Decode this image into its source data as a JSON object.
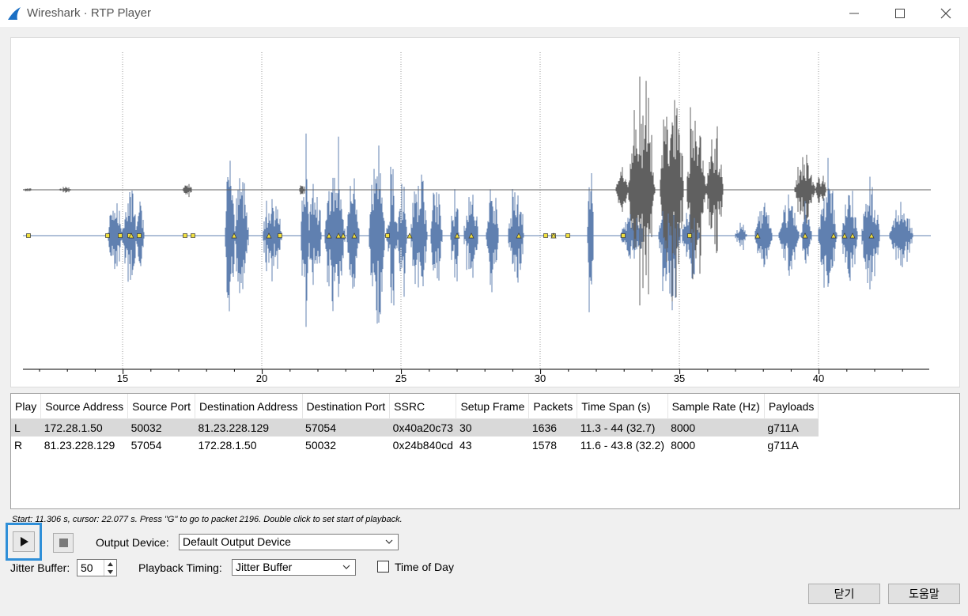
{
  "window": {
    "title": "Wireshark · RTP Player",
    "icon": "wireshark-fin-icon",
    "controls": [
      "minimize-icon",
      "maximize-icon",
      "close-icon"
    ]
  },
  "colors": {
    "left_channel": "#6080b0",
    "right_channel": "#606060",
    "marker_fill": "#f0e040",
    "selection_row": "#d9d9d9",
    "focus_outline": "#2f8fd8"
  },
  "waveform": {
    "x_ticks": [
      "15",
      "20",
      "25",
      "30",
      "35",
      "40"
    ]
  },
  "table": {
    "columns": [
      "Play",
      "Source Address",
      "Source Port",
      "Destination Address",
      "Destination Port",
      "SSRC",
      "Setup Frame",
      "Packets",
      "Time Span (s)",
      "Sample Rate (Hz)",
      "Payloads"
    ],
    "rows": [
      [
        "L",
        "172.28.1.50",
        "50032",
        "81.23.228.129",
        "57054",
        "0x40a20c73",
        "30",
        "1636",
        "11.3 - 44 (32.7)",
        "8000",
        "g711A"
      ],
      [
        "R",
        "81.23.228.129",
        "57054",
        "172.28.1.50",
        "50032",
        "0x24b840cd",
        "43",
        "1578",
        "11.6 - 43.8 (32.2)",
        "8000",
        "g711A"
      ]
    ]
  },
  "hint": "Start: 11.306 s, cursor: 22.077 s. Press \"G\" to go to packet 2196. Double click to set start of playback.",
  "controls": {
    "output_device_label": "Output Device:",
    "output_device_value": "Default Output Device",
    "jitter_buffer_label": "Jitter Buffer:",
    "jitter_buffer_value": "50",
    "playback_timing_label": "Playback Timing:",
    "playback_timing_value": "Jitter Buffer",
    "time_of_day_label": "Time of Day",
    "time_of_day_checked": false
  },
  "buttons": {
    "close": "닫기",
    "help": "도움말"
  }
}
